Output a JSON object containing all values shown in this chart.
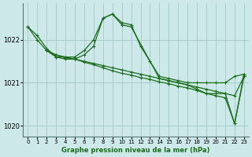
{
  "title": "Graphe pression niveau de la mer (hPa)",
  "bg_color": "#cce8e8",
  "grid_color": "#aacccc",
  "line_color": "#1a6e1a",
  "xlim": [
    -0.5,
    23.5
  ],
  "ylim": [
    1019.75,
    1022.85
  ],
  "yticks": [
    1020,
    1021,
    1022
  ],
  "xticks": [
    0,
    1,
    2,
    3,
    4,
    5,
    6,
    7,
    8,
    9,
    10,
    11,
    12,
    13,
    14,
    15,
    16,
    17,
    18,
    19,
    20,
    21,
    22,
    23
  ],
  "series": [
    {
      "x": [
        0,
        1,
        2,
        3,
        4,
        5,
        6,
        7,
        8,
        9,
        10,
        11,
        12,
        13,
        14,
        15,
        16,
        17,
        18,
        19,
        20,
        21,
        22,
        23
      ],
      "y": [
        1022.3,
        1022.1,
        1021.8,
        1021.6,
        1021.6,
        1021.6,
        1021.75,
        1022.0,
        1022.5,
        1022.6,
        1022.4,
        1022.35,
        1021.85,
        1021.5,
        1021.15,
        1021.1,
        1021.05,
        1021.0,
        1021.0,
        1021.0,
        1021.0,
        1021.0,
        1021.15,
        1021.2
      ]
    },
    {
      "x": [
        0,
        1,
        2,
        3,
        4,
        5,
        6,
        7,
        8,
        9,
        10,
        11,
        14,
        15,
        16,
        17,
        18,
        19,
        20,
        21,
        22,
        23
      ],
      "y": [
        1022.3,
        1022.0,
        1021.75,
        1021.6,
        1021.55,
        1021.55,
        1021.65,
        1021.85,
        1022.5,
        1022.6,
        1022.35,
        1022.3,
        1021.1,
        1021.05,
        1021.0,
        1020.95,
        1020.85,
        1020.75,
        1020.75,
        1020.75,
        1020.05,
        1021.2
      ]
    },
    {
      "x": [
        2,
        3,
        4,
        5,
        6,
        7,
        8,
        9,
        10,
        11,
        12,
        13,
        14,
        15,
        16,
        17,
        18,
        19,
        20,
        21,
        22,
        23
      ],
      "y": [
        1021.75,
        1021.65,
        1021.6,
        1021.55,
        1021.5,
        1021.45,
        1021.4,
        1021.35,
        1021.3,
        1021.25,
        1021.2,
        1021.15,
        1021.1,
        1021.05,
        1021.0,
        1020.95,
        1020.9,
        1020.85,
        1020.8,
        1020.75,
        1020.7,
        1021.15
      ]
    },
    {
      "x": [
        2,
        3,
        4,
        5,
        6,
        7,
        8,
        9,
        10,
        11,
        12,
        13,
        14,
        15,
        16,
        17,
        18,
        19,
        20,
        21,
        22,
        23
      ],
      "y": [
        1021.75,
        1021.65,
        1021.58,
        1021.55,
        1021.48,
        1021.42,
        1021.35,
        1021.28,
        1021.22,
        1021.18,
        1021.12,
        1021.08,
        1021.02,
        1020.98,
        1020.92,
        1020.88,
        1020.82,
        1020.75,
        1020.7,
        1020.65,
        1020.05,
        1021.15
      ]
    }
  ]
}
